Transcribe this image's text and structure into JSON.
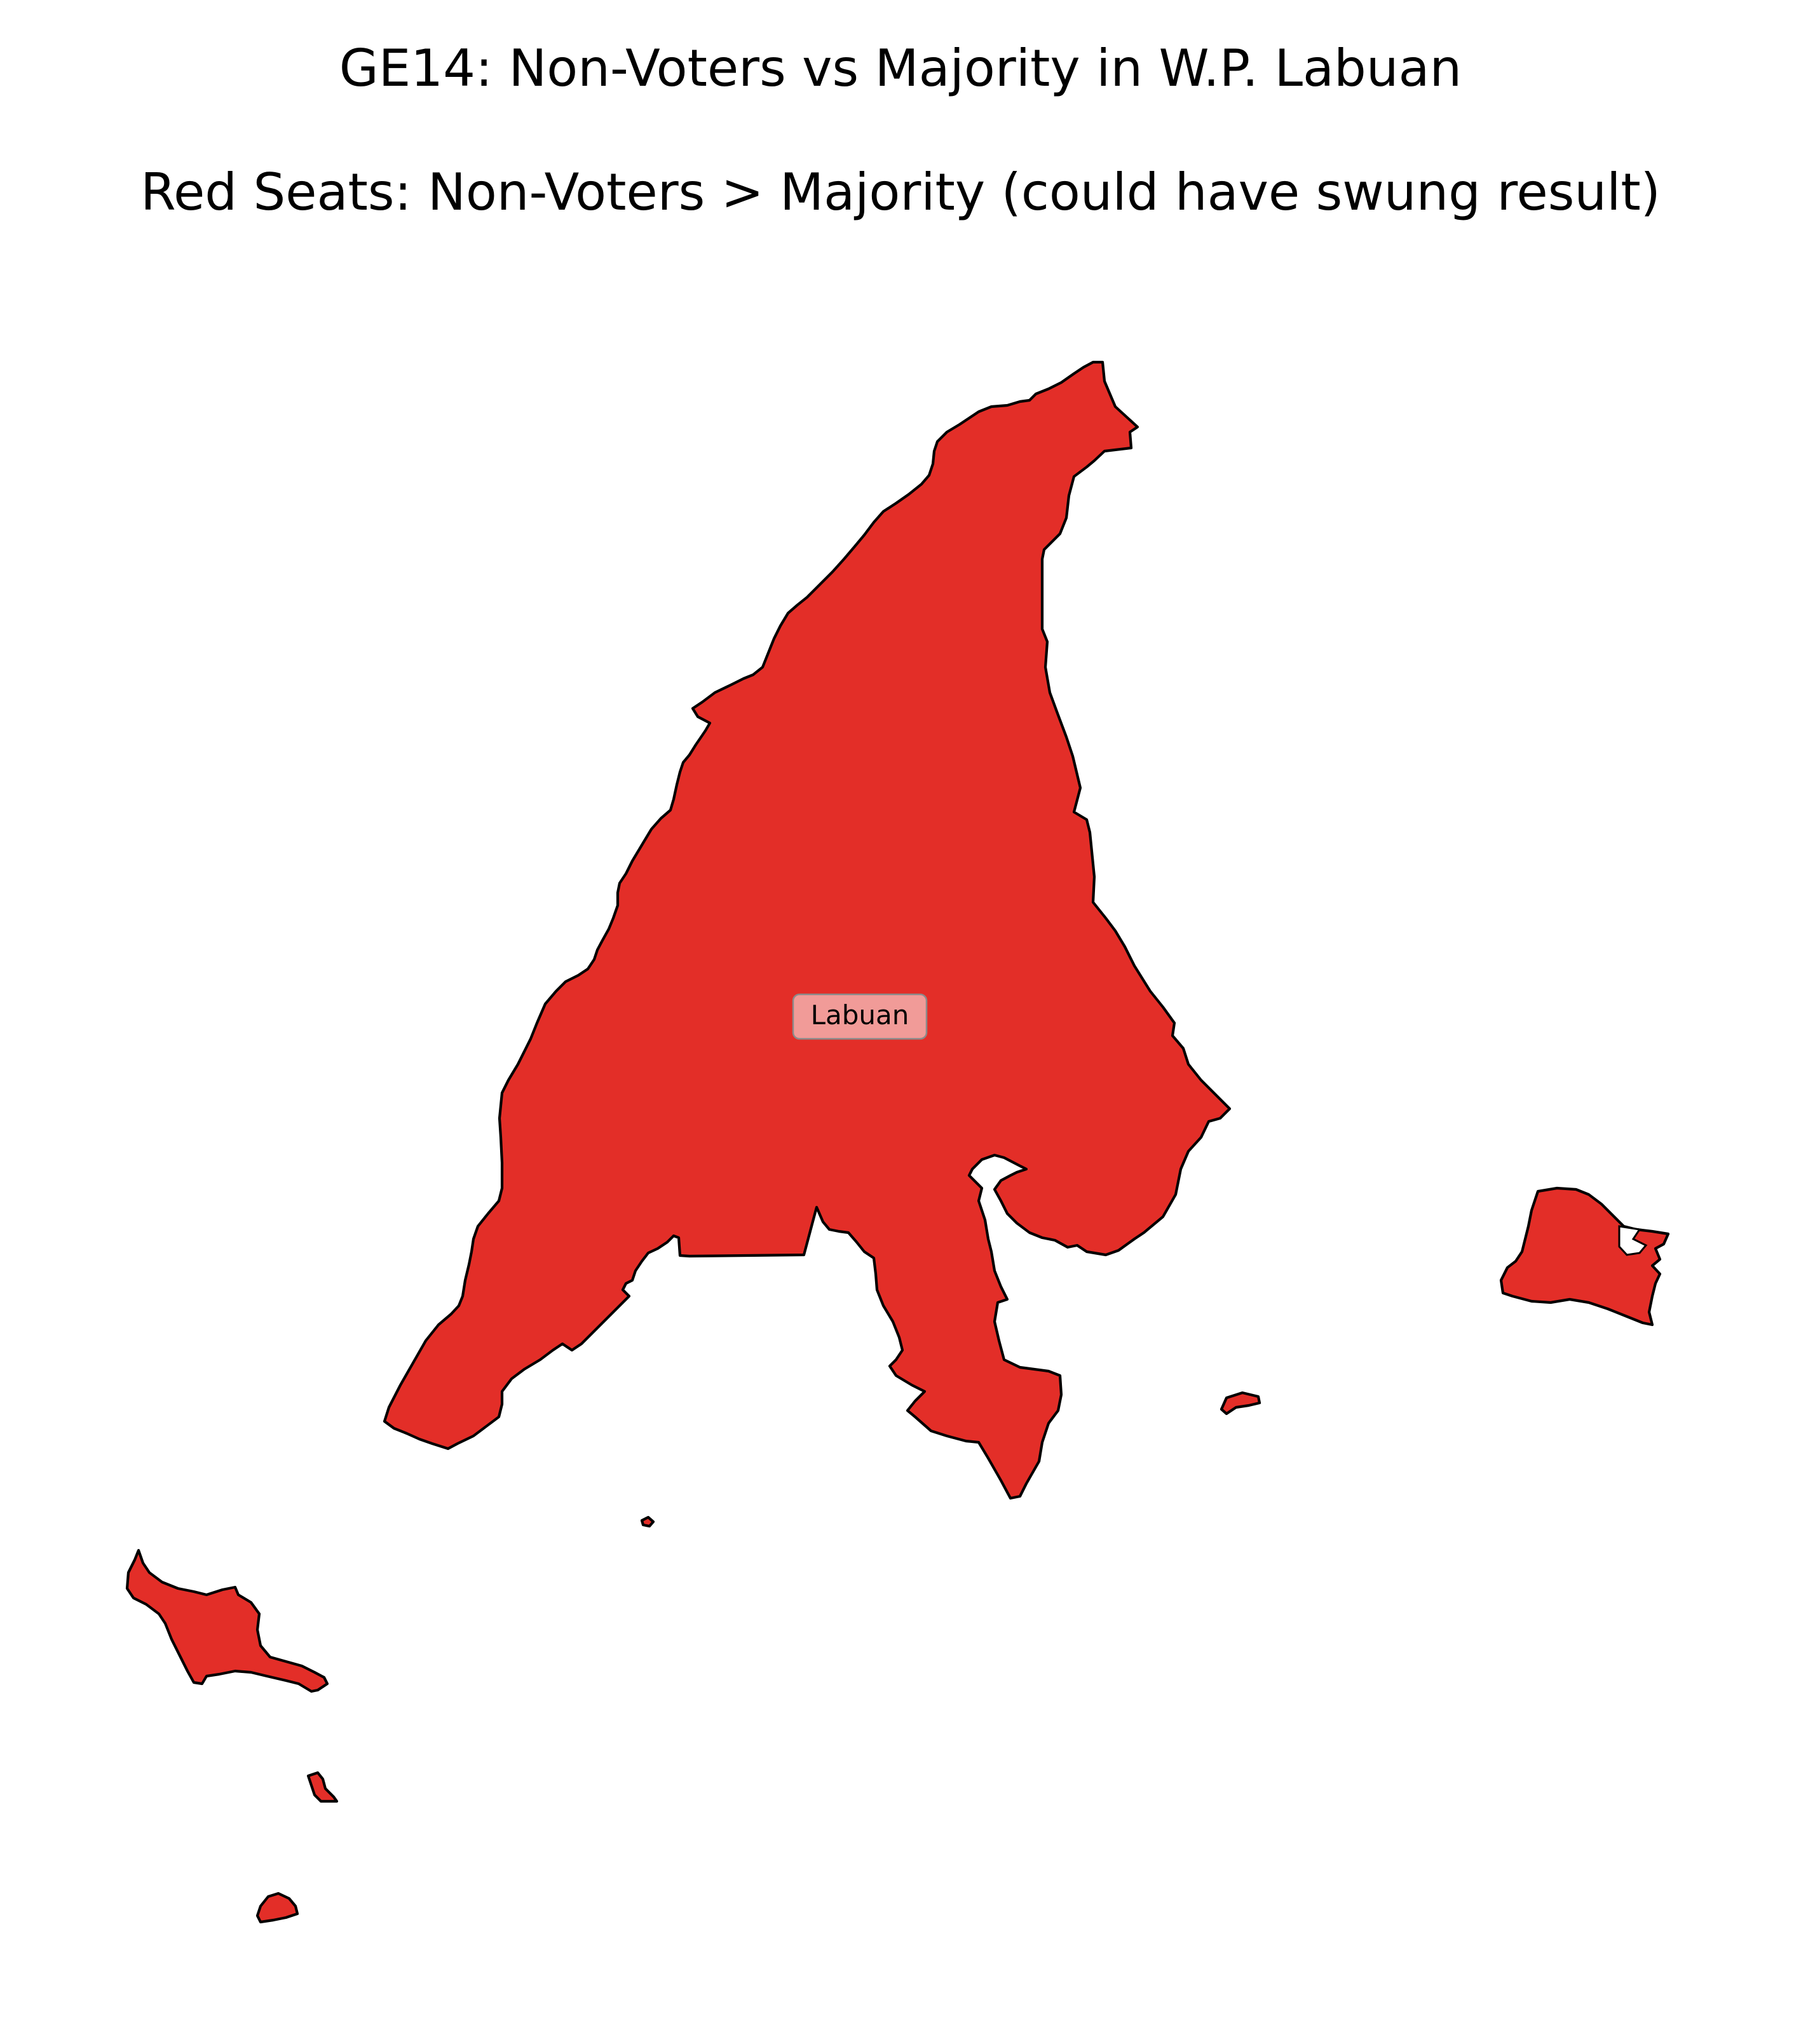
{
  "title": "GE14: Non-Voters vs Majority in W.P. Labuan",
  "subtitle": "Red Seats: Non-Voters > Majority (could have swung result)",
  "colors": {
    "red_seat": "#e32e28",
    "outline": "#000000",
    "label_box": "#f19b98",
    "background": "#ffffff"
  },
  "seats": [
    {
      "name": "Labuan",
      "label": "Labuan",
      "non_voters_exceed_majority": true
    }
  ]
}
